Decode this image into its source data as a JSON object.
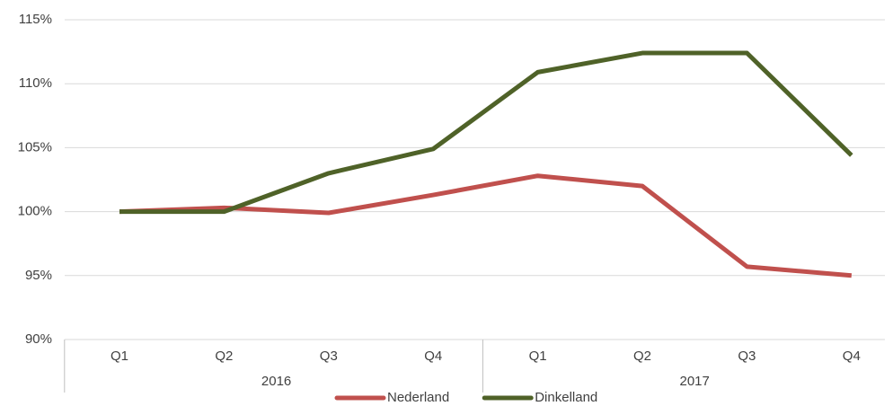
{
  "chart_data": {
    "type": "line",
    "categories": [
      "Q1",
      "Q2",
      "Q3",
      "Q4",
      "Q1",
      "Q2",
      "Q3",
      "Q4"
    ],
    "category_groups": [
      "2016",
      "2017"
    ],
    "series": [
      {
        "name": "Nederland",
        "color": "#c0504d",
        "values": [
          100,
          100.3,
          99.9,
          101.3,
          102.8,
          102.0,
          95.7,
          95.0
        ]
      },
      {
        "name": "Dinkelland",
        "color": "#4f6228",
        "values": [
          100,
          100,
          103.0,
          104.9,
          110.9,
          112.4,
          112.4,
          104.4
        ]
      }
    ],
    "ylim": [
      90,
      115
    ],
    "yticks": [
      {
        "value": 90,
        "label": "90%"
      },
      {
        "value": 95,
        "label": "95%"
      },
      {
        "value": 100,
        "label": "100%"
      },
      {
        "value": 105,
        "label": "105%"
      },
      {
        "value": 110,
        "label": "110%"
      },
      {
        "value": 115,
        "label": "115%"
      }
    ],
    "grid": true,
    "legend": "bottom"
  }
}
